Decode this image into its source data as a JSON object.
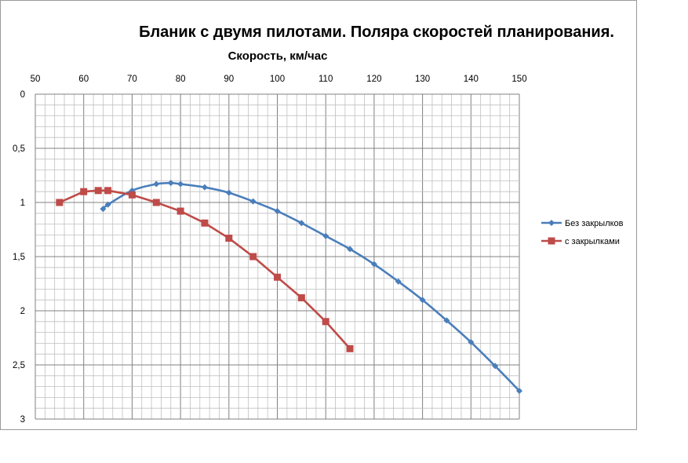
{
  "chart_data": {
    "type": "line",
    "title": "Бланик с двумя пилотами.  Поляра скоростей планирования.",
    "xlabel": "Скорость, км/час",
    "ylabel": "",
    "xlim": [
      50,
      150
    ],
    "ylim": [
      0,
      3
    ],
    "y_inverted": true,
    "x_axis_position": "top",
    "x_ticks": [
      "50",
      "60",
      "70",
      "80",
      "90",
      "100",
      "110",
      "120",
      "130",
      "140",
      "150"
    ],
    "x_tick_values": [
      50,
      60,
      70,
      80,
      90,
      100,
      110,
      120,
      130,
      140,
      150
    ],
    "y_ticks": [
      "0",
      "0,5",
      "1",
      "1,5",
      "2",
      "2,5",
      "3"
    ],
    "y_tick_values": [
      0,
      0.5,
      1,
      1.5,
      2,
      2.5,
      3
    ],
    "grid": true,
    "legend_position": "right",
    "series": [
      {
        "name": "Без закрылков",
        "color": "#4a7ebb",
        "marker": "diamond",
        "x": [
          64,
          65,
          70,
          75,
          78,
          80,
          85,
          90,
          95,
          100,
          105,
          110,
          115,
          120,
          125,
          130,
          135,
          140,
          145,
          150
        ],
        "y": [
          1.06,
          1.02,
          0.89,
          0.83,
          0.82,
          0.83,
          0.86,
          0.91,
          0.99,
          1.08,
          1.19,
          1.31,
          1.43,
          1.57,
          1.73,
          1.9,
          2.09,
          2.29,
          2.51,
          2.74
        ]
      },
      {
        "name": "с закрылками",
        "color": "#be4b48",
        "marker": "square",
        "x": [
          55,
          60,
          63,
          65,
          70,
          75,
          80,
          85,
          90,
          95,
          100,
          105,
          110,
          115
        ],
        "y": [
          1.0,
          0.9,
          0.89,
          0.89,
          0.93,
          1.0,
          1.08,
          1.19,
          1.33,
          1.5,
          1.69,
          1.88,
          2.1,
          2.35
        ]
      }
    ]
  }
}
